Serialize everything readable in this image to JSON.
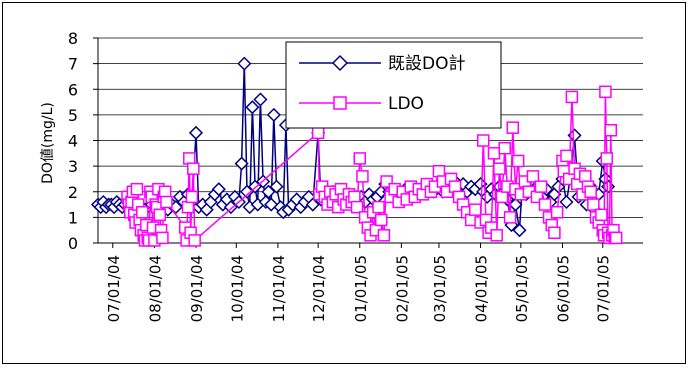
{
  "chart_data": {
    "type": "line",
    "ylabel": "DO値(mg/L)",
    "xlabel": "",
    "ylim": [
      0,
      8
    ],
    "yticks": [
      0,
      1,
      2,
      3,
      4,
      5,
      6,
      7,
      8
    ],
    "x_range": [
      "2004-06-20",
      "2005-07-31"
    ],
    "xtick_labels": [
      "07/01/04",
      "08/01/04",
      "09/01/04",
      "10/01/04",
      "11/01/04",
      "12/01/04",
      "01/01/05",
      "02/01/05",
      "03/01/05",
      "04/01/05",
      "05/01/05",
      "06/01/05",
      "07/01/05"
    ],
    "xtick_dates": [
      "2004-07-01",
      "2004-08-01",
      "2004-09-01",
      "2004-10-01",
      "2004-11-01",
      "2004-12-01",
      "2005-01-01",
      "2005-02-01",
      "2005-03-01",
      "2005-04-01",
      "2005-05-01",
      "2005-06-01",
      "2005-07-01"
    ],
    "grid": "horizontal",
    "legend_placement": "top-center",
    "series": [
      {
        "name": "既設DO計",
        "color": "#000080",
        "marker": "diamond",
        "points": [
          [
            "2004-06-20",
            1.5
          ],
          [
            "2004-06-22",
            1.4
          ],
          [
            "2004-06-24",
            1.6
          ],
          [
            "2004-06-26",
            1.4
          ],
          [
            "2004-06-28",
            1.5
          ],
          [
            "2004-06-30",
            1.5
          ],
          [
            "2004-07-02",
            1.4
          ],
          [
            "2004-07-04",
            1.6
          ],
          [
            "2004-07-06",
            1.5
          ],
          [
            "2004-07-08",
            1.4
          ],
          [
            "2004-07-10",
            1.5
          ],
          [
            "2004-07-12",
            1.6
          ],
          [
            "2004-07-14",
            1.4
          ],
          [
            "2004-07-16",
            1.5
          ],
          [
            "2004-07-20",
            1.4
          ],
          [
            "2004-07-25",
            1.3
          ],
          [
            "2004-07-30",
            1.5
          ],
          [
            "2004-08-04",
            1.4
          ],
          [
            "2004-08-08",
            1.6
          ],
          [
            "2004-08-11",
            1.3
          ],
          [
            "2004-08-14",
            1.5
          ],
          [
            "2004-08-17",
            1.4
          ],
          [
            "2004-08-20",
            1.8
          ],
          [
            "2004-08-23",
            1.6
          ],
          [
            "2004-08-26",
            1.9
          ],
          [
            "2004-08-29",
            1.5
          ],
          [
            "2004-09-01",
            4.3
          ],
          [
            "2004-09-03",
            1.4
          ],
          [
            "2004-09-06",
            1.5
          ],
          [
            "2004-09-09",
            1.3
          ],
          [
            "2004-09-12",
            1.6
          ],
          [
            "2004-09-15",
            1.9
          ],
          [
            "2004-09-18",
            2.1
          ],
          [
            "2004-09-21",
            1.5
          ],
          [
            "2004-09-24",
            1.7
          ],
          [
            "2004-09-27",
            1.4
          ],
          [
            "2004-09-30",
            1.8
          ],
          [
            "2004-10-03",
            1.6
          ],
          [
            "2004-10-05",
            3.1
          ],
          [
            "2004-10-07",
            7.0
          ],
          [
            "2004-10-09",
            2.0
          ],
          [
            "2004-10-11",
            1.4
          ],
          [
            "2004-10-13",
            5.3
          ],
          [
            "2004-10-15",
            2.2
          ],
          [
            "2004-10-17",
            1.5
          ],
          [
            "2004-10-19",
            5.6
          ],
          [
            "2004-10-21",
            2.4
          ],
          [
            "2004-10-23",
            1.6
          ],
          [
            "2004-10-25",
            2.0
          ],
          [
            "2004-10-27",
            1.5
          ],
          [
            "2004-10-29",
            5.0
          ],
          [
            "2004-10-31",
            2.2
          ],
          [
            "2004-11-03",
            1.4
          ],
          [
            "2004-11-05",
            1.2
          ],
          [
            "2004-11-07",
            4.6
          ],
          [
            "2004-11-09",
            1.3
          ],
          [
            "2004-11-12",
            1.5
          ],
          [
            "2004-11-15",
            1.7
          ],
          [
            "2004-11-18",
            1.4
          ],
          [
            "2004-11-21",
            1.6
          ],
          [
            "2004-11-24",
            1.8
          ],
          [
            "2004-11-27",
            1.5
          ],
          [
            "2004-12-01",
            4.3
          ],
          [
            "2004-12-03",
            1.7
          ],
          [
            "2004-12-06",
            1.9
          ],
          [
            "2004-12-09",
            1.6
          ],
          [
            "2004-12-12",
            2.0
          ],
          [
            "2004-12-15",
            1.7
          ],
          [
            "2004-12-18",
            1.8
          ],
          [
            "2004-12-21",
            1.6
          ],
          [
            "2004-12-24",
            1.9
          ],
          [
            "2004-12-27",
            1.7
          ],
          [
            "2004-12-30",
            1.8
          ],
          [
            "2005-01-02",
            1.8
          ],
          [
            "2005-01-05",
            1.6
          ],
          [
            "2005-01-08",
            1.9
          ],
          [
            "2005-01-11",
            1.7
          ],
          [
            "2005-01-14",
            1.8
          ],
          [
            "2005-01-17",
            2.0
          ],
          [
            "2005-01-20",
            2.3
          ],
          [
            "2005-01-23",
            2.0
          ],
          [
            "2005-01-26",
            1.8
          ],
          [
            "2005-01-29",
            2.0
          ],
          [
            "2005-02-01",
            1.9
          ],
          [
            "2005-02-04",
            2.1
          ],
          [
            "2005-02-07",
            1.8
          ],
          [
            "2005-02-10",
            2.0
          ],
          [
            "2005-02-13",
            1.9
          ],
          [
            "2005-02-16",
            2.1
          ],
          [
            "2005-02-19",
            2.0
          ],
          [
            "2005-02-22",
            2.2
          ],
          [
            "2005-02-25",
            2.0
          ],
          [
            "2005-03-01",
            2.2
          ],
          [
            "2005-03-04",
            2.0
          ],
          [
            "2005-03-07",
            2.3
          ],
          [
            "2005-03-10",
            2.1
          ],
          [
            "2005-03-13",
            2.4
          ],
          [
            "2005-03-16",
            2.2
          ],
          [
            "2005-03-19",
            2.3
          ],
          [
            "2005-03-22",
            2.0
          ],
          [
            "2005-03-25",
            2.2
          ],
          [
            "2005-03-28",
            2.1
          ],
          [
            "2005-04-01",
            2.3
          ],
          [
            "2005-04-03",
            2.0
          ],
          [
            "2005-04-06",
            1.8
          ],
          [
            "2005-04-09",
            2.1
          ],
          [
            "2005-04-12",
            1.9
          ],
          [
            "2005-04-15",
            2.2
          ],
          [
            "2005-04-18",
            2.0
          ],
          [
            "2005-04-21",
            1.7
          ],
          [
            "2005-04-24",
            0.7
          ],
          [
            "2005-04-27",
            1.5
          ],
          [
            "2005-04-30",
            0.5
          ],
          [
            "2005-05-02",
            2.2
          ],
          [
            "2005-05-05",
            1.9
          ],
          [
            "2005-05-08",
            2.4
          ],
          [
            "2005-05-11",
            2.1
          ],
          [
            "2005-05-14",
            2.0
          ],
          [
            "2005-05-17",
            1.8
          ],
          [
            "2005-05-20",
            2.1
          ],
          [
            "2005-05-23",
            1.6
          ],
          [
            "2005-05-26",
            1.9
          ],
          [
            "2005-05-29",
            2.2
          ],
          [
            "2005-06-01",
            2.5
          ],
          [
            "2005-06-04",
            1.6
          ],
          [
            "2005-06-07",
            2.6
          ],
          [
            "2005-06-10",
            4.2
          ],
          [
            "2005-06-13",
            1.8
          ],
          [
            "2005-06-16",
            2.3
          ],
          [
            "2005-06-19",
            1.5
          ],
          [
            "2005-06-22",
            2.2
          ],
          [
            "2005-06-25",
            1.3
          ],
          [
            "2005-06-28",
            1.9
          ],
          [
            "2005-07-01",
            3.2
          ],
          [
            "2005-07-03",
            2.5
          ],
          [
            "2005-07-05",
            2.2
          ]
        ]
      },
      {
        "name": "LDO",
        "color": "#ff00ff",
        "marker": "square",
        "points": [
          [
            "2004-07-12",
            1.8
          ],
          [
            "2004-07-13",
            1.5
          ],
          [
            "2004-07-14",
            1.2
          ],
          [
            "2004-07-15",
            1.6
          ],
          [
            "2004-07-16",
            2.0
          ],
          [
            "2004-07-17",
            1.1
          ],
          [
            "2004-07-18",
            0.8
          ],
          [
            "2004-07-19",
            2.1
          ],
          [
            "2004-07-20",
            1.5
          ],
          [
            "2004-07-21",
            0.9
          ],
          [
            "2004-07-22",
            0.5
          ],
          [
            "2004-07-23",
            1.2
          ],
          [
            "2004-07-24",
            0.3
          ],
          [
            "2004-07-25",
            0.1
          ],
          [
            "2004-07-26",
            0.7
          ],
          [
            "2004-07-27",
            0.2
          ],
          [
            "2004-07-28",
            0.1
          ],
          [
            "2004-07-29",
            2.0
          ],
          [
            "2004-07-30",
            1.8
          ],
          [
            "2004-07-31",
            0.6
          ],
          [
            "2004-08-01",
            0.1
          ],
          [
            "2004-08-02",
            1.5
          ],
          [
            "2004-08-03",
            1.4
          ],
          [
            "2004-08-04",
            2.1
          ],
          [
            "2004-08-05",
            1.1
          ],
          [
            "2004-08-06",
            0.5
          ],
          [
            "2004-08-07",
            0.2
          ],
          [
            "2004-08-08",
            1.8
          ],
          [
            "2004-08-09",
            2.0
          ],
          [
            "2004-08-10",
            1.6
          ],
          [
            "2004-08-24",
            0.6
          ],
          [
            "2004-08-25",
            0.1
          ],
          [
            "2004-08-26",
            1.4
          ],
          [
            "2004-08-27",
            3.3
          ],
          [
            "2004-08-28",
            0.4
          ],
          [
            "2004-08-29",
            1.8
          ],
          [
            "2004-08-30",
            2.9
          ],
          [
            "2004-08-31",
            0.1
          ],
          [
            "2004-12-01",
            4.3
          ],
          [
            "2004-12-02",
            1.9
          ],
          [
            "2004-12-04",
            2.2
          ],
          [
            "2004-12-06",
            1.8
          ],
          [
            "2004-12-08",
            1.5
          ],
          [
            "2004-12-10",
            2.0
          ],
          [
            "2004-12-12",
            1.6
          ],
          [
            "2004-12-14",
            1.9
          ],
          [
            "2004-12-16",
            1.4
          ],
          [
            "2004-12-18",
            2.1
          ],
          [
            "2004-12-20",
            1.7
          ],
          [
            "2004-12-22",
            1.5
          ],
          [
            "2004-12-24",
            1.9
          ],
          [
            "2004-12-26",
            1.6
          ],
          [
            "2004-12-28",
            1.8
          ],
          [
            "2004-12-30",
            1.4
          ],
          [
            "2005-01-01",
            3.3
          ],
          [
            "2005-01-03",
            2.6
          ],
          [
            "2005-01-05",
            1.0
          ],
          [
            "2005-01-07",
            0.6
          ],
          [
            "2005-01-09",
            0.3
          ],
          [
            "2005-01-11",
            1.2
          ],
          [
            "2005-01-13",
            0.5
          ],
          [
            "2005-01-15",
            1.4
          ],
          [
            "2005-01-17",
            0.9
          ],
          [
            "2005-01-19",
            0.3
          ],
          [
            "2005-01-21",
            2.4
          ],
          [
            "2005-01-24",
            1.8
          ],
          [
            "2005-01-27",
            2.1
          ],
          [
            "2005-01-30",
            1.6
          ],
          [
            "2005-02-02",
            2.0
          ],
          [
            "2005-02-05",
            1.7
          ],
          [
            "2005-02-08",
            2.2
          ],
          [
            "2005-02-11",
            1.8
          ],
          [
            "2005-02-14",
            2.1
          ],
          [
            "2005-02-17",
            1.9
          ],
          [
            "2005-02-20",
            2.3
          ],
          [
            "2005-02-23",
            2.0
          ],
          [
            "2005-02-26",
            2.2
          ],
          [
            "2005-03-01",
            2.8
          ],
          [
            "2005-03-04",
            2.4
          ],
          [
            "2005-03-07",
            2.0
          ],
          [
            "2005-03-10",
            2.5
          ],
          [
            "2005-03-13",
            2.2
          ],
          [
            "2005-03-16",
            1.8
          ],
          [
            "2005-03-19",
            1.5
          ],
          [
            "2005-03-22",
            1.2
          ],
          [
            "2005-03-25",
            0.9
          ],
          [
            "2005-03-28",
            1.3
          ],
          [
            "2005-04-01",
            0.8
          ],
          [
            "2005-04-03",
            4.0
          ],
          [
            "2005-04-05",
            0.9
          ],
          [
            "2005-04-07",
            0.4
          ],
          [
            "2005-04-09",
            0.6
          ],
          [
            "2005-04-11",
            3.5
          ],
          [
            "2005-04-13",
            0.3
          ],
          [
            "2005-04-15",
            2.9
          ],
          [
            "2005-04-17",
            1.8
          ],
          [
            "2005-04-19",
            3.7
          ],
          [
            "2005-04-21",
            2.2
          ],
          [
            "2005-04-23",
            1.0
          ],
          [
            "2005-04-25",
            4.5
          ],
          [
            "2005-04-27",
            2.1
          ],
          [
            "2005-04-29",
            3.2
          ],
          [
            "2005-05-01",
            1.9
          ],
          [
            "2005-05-04",
            2.4
          ],
          [
            "2005-05-07",
            2.0
          ],
          [
            "2005-05-10",
            2.6
          ],
          [
            "2005-05-13",
            1.8
          ],
          [
            "2005-05-16",
            2.2
          ],
          [
            "2005-05-19",
            1.5
          ],
          [
            "2005-05-22",
            1.0
          ],
          [
            "2005-05-24",
            0.7
          ],
          [
            "2005-05-26",
            0.4
          ],
          [
            "2005-05-28",
            1.2
          ],
          [
            "2005-06-01",
            3.2
          ],
          [
            "2005-06-02",
            2.8
          ],
          [
            "2005-06-04",
            3.4
          ],
          [
            "2005-06-06",
            2.5
          ],
          [
            "2005-06-08",
            5.7
          ],
          [
            "2005-06-10",
            2.9
          ],
          [
            "2005-06-12",
            2.3
          ],
          [
            "2005-06-14",
            2.7
          ],
          [
            "2005-06-16",
            1.9
          ],
          [
            "2005-06-18",
            2.6
          ],
          [
            "2005-06-20",
            2.2
          ],
          [
            "2005-06-22",
            2.0
          ],
          [
            "2005-06-24",
            1.5
          ],
          [
            "2005-06-26",
            1.0
          ],
          [
            "2005-06-28",
            0.8
          ],
          [
            "2005-06-30",
            1.1
          ],
          [
            "2005-07-01",
            0.5
          ],
          [
            "2005-07-02",
            0.3
          ],
          [
            "2005-07-03",
            5.9
          ],
          [
            "2005-07-04",
            3.3
          ],
          [
            "2005-07-05",
            0.4
          ],
          [
            "2005-07-06",
            0.2
          ],
          [
            "2005-07-07",
            4.4
          ],
          [
            "2005-07-08",
            0.3
          ],
          [
            "2005-07-09",
            0.5
          ],
          [
            "2005-07-10",
            0.2
          ],
          [
            "2005-07-11",
            0.2
          ]
        ]
      }
    ]
  }
}
